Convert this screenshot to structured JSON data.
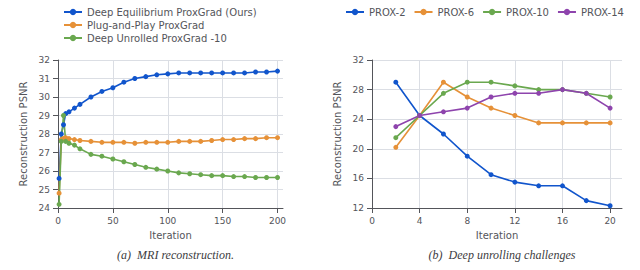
{
  "chart_data": [
    {
      "type": "line",
      "title": "(a)  MRI reconstruction.",
      "xlabel": "Iteration",
      "ylabel": "Reconstruction PSNR",
      "xlim": [
        0,
        205
      ],
      "xticks": [
        0,
        50,
        100,
        150,
        200
      ],
      "ylim": [
        24,
        32
      ],
      "yticks": [
        24,
        25,
        26,
        27,
        28,
        29,
        30,
        31,
        32
      ],
      "grid": true,
      "legend": "top",
      "x": [
        1,
        3,
        5,
        7,
        10,
        15,
        20,
        30,
        40,
        50,
        60,
        70,
        80,
        90,
        100,
        110,
        120,
        130,
        140,
        150,
        160,
        170,
        180,
        190,
        200
      ],
      "series": [
        {
          "name": "Deep Equilibrium ProxGrad (Ours)",
          "color": "#1155cc",
          "marker": "circle",
          "values": [
            25.6,
            28.0,
            28.5,
            29.1,
            29.2,
            29.4,
            29.6,
            30.0,
            30.3,
            30.5,
            30.8,
            31.0,
            31.1,
            31.2,
            31.25,
            31.3,
            31.3,
            31.3,
            31.3,
            31.3,
            31.3,
            31.3,
            31.35,
            31.35,
            31.4
          ]
        },
        {
          "name": "Plug-and-Play ProxGrad",
          "color": "#e69138",
          "marker": "circle",
          "values": [
            24.8,
            27.7,
            27.75,
            27.8,
            27.75,
            27.7,
            27.65,
            27.6,
            27.55,
            27.55,
            27.55,
            27.5,
            27.55,
            27.55,
            27.55,
            27.6,
            27.6,
            27.6,
            27.65,
            27.7,
            27.7,
            27.75,
            27.75,
            27.8,
            27.8
          ]
        },
        {
          "name": "Deep Unrolled ProxGrad -10",
          "color": "#6aa84f",
          "marker": "circle",
          "values": [
            24.2,
            27.6,
            29.0,
            27.6,
            27.5,
            27.4,
            27.2,
            26.9,
            26.8,
            26.65,
            26.5,
            26.35,
            26.2,
            26.1,
            26.0,
            25.9,
            25.85,
            25.8,
            25.75,
            25.75,
            25.7,
            25.7,
            25.65,
            25.65,
            25.65
          ]
        }
      ]
    },
    {
      "type": "line",
      "title": "(b)  Deep unrolling challenges",
      "xlabel": "Iteration",
      "ylabel": "Reconstruction PSNR",
      "xlim": [
        0,
        21
      ],
      "xticks": [
        0,
        4,
        8,
        12,
        16,
        20
      ],
      "ylim": [
        12,
        32
      ],
      "yticks": [
        12,
        16,
        20,
        24,
        28,
        32
      ],
      "grid": true,
      "legend": "top",
      "x": [
        2,
        4,
        6,
        8,
        10,
        12,
        14,
        16,
        18,
        20
      ],
      "series": [
        {
          "name": "PROX-2",
          "color": "#1155cc",
          "marker": "circle",
          "values": [
            29.0,
            24.5,
            22.0,
            19.0,
            16.5,
            15.5,
            15.0,
            15.0,
            13.0,
            12.3
          ]
        },
        {
          "name": "PROX-6",
          "color": "#e69138",
          "marker": "circle",
          "values": [
            20.2,
            24.5,
            29.0,
            27.0,
            25.5,
            24.5,
            23.5,
            23.5,
            23.5,
            23.5
          ]
        },
        {
          "name": "PROX-10",
          "color": "#6aa84f",
          "marker": "circle",
          "values": [
            21.5,
            24.5,
            27.5,
            29.0,
            29.0,
            28.5,
            28.0,
            28.0,
            27.5,
            27.0
          ]
        },
        {
          "name": "PROX-14",
          "color": "#8e44ad",
          "marker": "circle",
          "values": [
            23.0,
            24.5,
            25.0,
            25.5,
            27.0,
            27.5,
            27.5,
            28.0,
            27.5,
            25.5
          ]
        }
      ]
    }
  ]
}
